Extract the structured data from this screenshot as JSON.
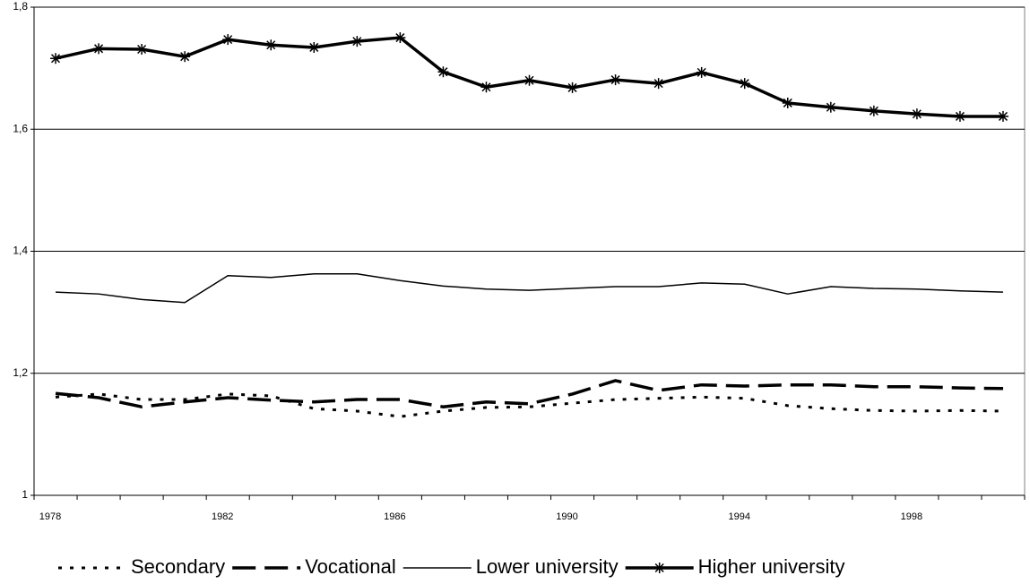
{
  "chart_data": {
    "type": "line",
    "categories": [
      "1978",
      null,
      null,
      null,
      "1982",
      null,
      null,
      null,
      "1986",
      null,
      null,
      null,
      "1990",
      null,
      null,
      null,
      "1994",
      null,
      null,
      null,
      "1998",
      null,
      null
    ],
    "ylim": [
      1,
      1.8
    ],
    "yticks": [
      1,
      {
        "value": 1.2,
        "label": "1,2"
      },
      {
        "value": 1.4,
        "label": "1,4"
      },
      {
        "value": 1.6,
        "label": "1,6"
      },
      {
        "value": 1.8,
        "label": "1,8"
      }
    ],
    "grid": true,
    "legend": "bottom",
    "series": [
      {
        "name": "Secondary",
        "color": "#000000",
        "line_style": "dotted",
        "line_width": 3,
        "values": [
          1.161,
          1.166,
          1.157,
          1.157,
          1.166,
          1.163,
          1.142,
          1.138,
          1.129,
          1.138,
          1.144,
          1.145,
          1.151,
          1.157,
          1.159,
          1.161,
          1.159,
          1.147,
          1.142,
          1.139,
          1.138,
          1.139,
          1.138
        ]
      },
      {
        "name": "Vocational",
        "color": "#000000",
        "line_style": "dashed",
        "line_width": 3.5,
        "values": [
          1.167,
          1.16,
          1.145,
          1.153,
          1.16,
          1.156,
          1.153,
          1.157,
          1.157,
          1.145,
          1.153,
          1.15,
          1.166,
          1.188,
          1.172,
          1.181,
          1.179,
          1.181,
          1.181,
          1.178,
          1.178,
          1.176,
          1.175
        ]
      },
      {
        "name": "Lower university",
        "color": "#000000",
        "line_style": "solid",
        "line_width": 1.5,
        "values": [
          1.333,
          1.33,
          1.321,
          1.316,
          1.36,
          1.357,
          1.363,
          1.363,
          1.352,
          1.343,
          1.338,
          1.336,
          1.339,
          1.342,
          1.342,
          1.348,
          1.346,
          1.33,
          1.342,
          1.339,
          1.338,
          1.335,
          1.333
        ]
      },
      {
        "name": "Higher university",
        "color": "#000000",
        "line_style": "solid",
        "line_width": 3.5,
        "marker": "star",
        "values": [
          1.716,
          1.732,
          1.731,
          1.719,
          1.747,
          1.738,
          1.734,
          1.744,
          1.75,
          1.694,
          1.669,
          1.68,
          1.668,
          1.681,
          1.675,
          1.693,
          1.675,
          1.643,
          1.636,
          1.63,
          1.625,
          1.621,
          1.621
        ]
      }
    ]
  }
}
